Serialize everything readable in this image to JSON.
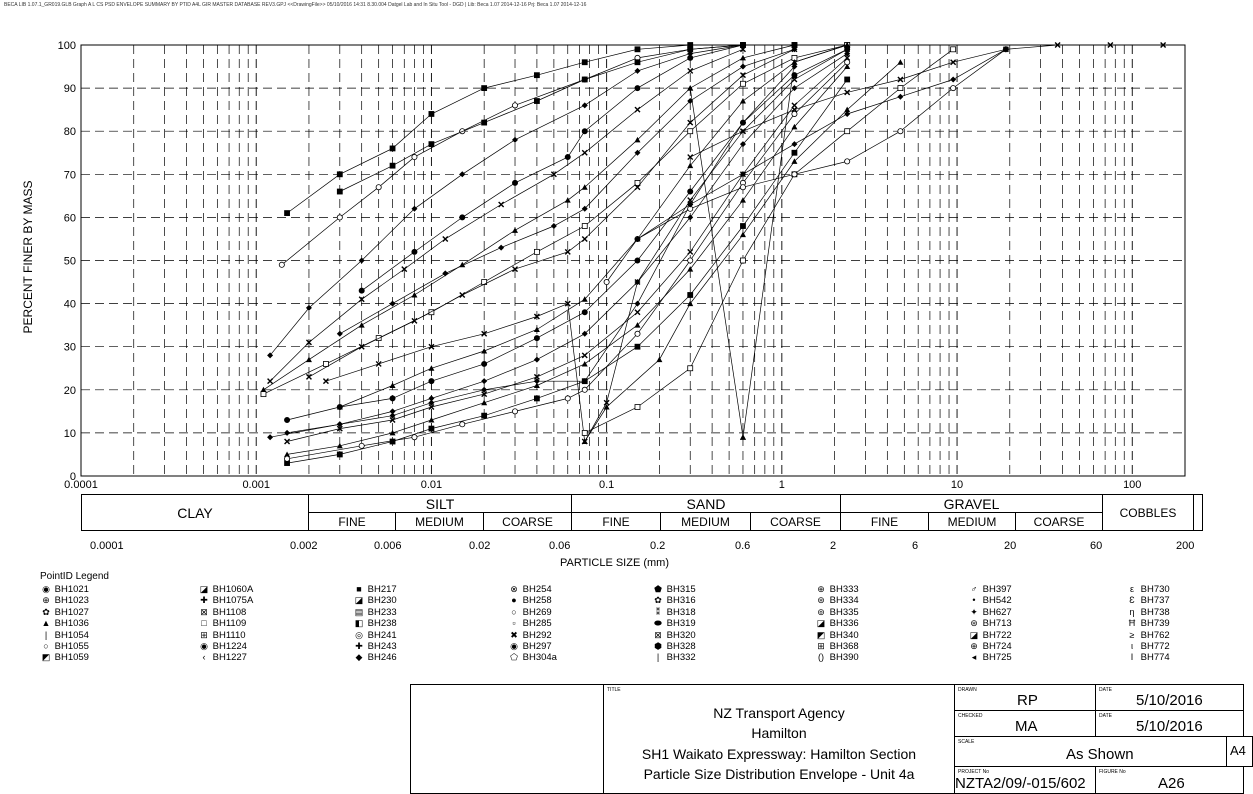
{
  "header_text": "BECA LIB 1.07.1_GR019.GLB Graph A L CS PSD ENVELOPE SUMMARY BY PTID A4L GIR MASTER DATABASE REV3.GPJ <<DrawingFile>> 05/10/2016 14:31 8.30.004 Datgel Lab and In Situ Tool - DGD | Lib: Beca 1.07 2014-12-16 Prj: Beca 1.07 2014-12-16",
  "chart_data": {
    "type": "line",
    "x_scale": "log",
    "xlim": [
      0.0001,
      200
    ],
    "ylim": [
      0,
      100
    ],
    "ylabel": "PERCENT FINER BY MASS",
    "xlabel": "PARTICLE SIZE (mm)",
    "y_ticks": [
      "0",
      "10",
      "20",
      "30",
      "40",
      "50",
      "60",
      "70",
      "80",
      "90",
      "100"
    ],
    "x_ticks": [
      "0.0001",
      "0.001",
      "0.01",
      "0.1",
      "1",
      "10",
      "100"
    ],
    "grid": true,
    "series": [
      {
        "x": [
          0.0015,
          0.003,
          0.006,
          0.01,
          0.02,
          0.04,
          0.075,
          0.15,
          0.3,
          0.6,
          1.18,
          2.36
        ],
        "y": [
          61,
          70,
          76,
          84,
          90,
          93,
          96,
          99,
          100,
          100,
          100,
          100
        ]
      },
      {
        "x": [
          0.0014,
          0.003,
          0.005,
          0.008,
          0.015,
          0.03,
          0.075,
          0.15,
          0.3,
          0.6,
          1.18
        ],
        "y": [
          49,
          60,
          67,
          74,
          80,
          86,
          92,
          97,
          99,
          100,
          100
        ]
      },
      {
        "x": [
          0.0012,
          0.002,
          0.004,
          0.008,
          0.015,
          0.03,
          0.075,
          0.15,
          0.3,
          0.6
        ],
        "y": [
          28,
          39,
          50,
          62,
          70,
          78,
          86,
          94,
          98,
          100
        ]
      },
      {
        "x": [
          0.0012,
          0.002,
          0.004,
          0.007,
          0.012,
          0.025,
          0.05,
          0.075,
          0.15,
          0.3,
          0.6
        ],
        "y": [
          22,
          31,
          41,
          48,
          55,
          63,
          70,
          75,
          85,
          94,
          99
        ]
      },
      {
        "x": [
          0.0011,
          0.002,
          0.004,
          0.008,
          0.015,
          0.03,
          0.06,
          0.075,
          0.15,
          0.3,
          0.6,
          1.18
        ],
        "y": [
          20,
          27,
          35,
          42,
          49,
          57,
          64,
          67,
          78,
          90,
          97,
          100
        ]
      },
      {
        "x": [
          0.0011,
          0.0025,
          0.005,
          0.01,
          0.02,
          0.04,
          0.075,
          0.15,
          0.3,
          0.6,
          1.18,
          2.36
        ],
        "y": [
          19,
          26,
          32,
          38,
          45,
          52,
          58,
          68,
          80,
          91,
          97,
          100
        ]
      },
      {
        "x": [
          0.0015,
          0.003,
          0.006,
          0.01,
          0.02,
          0.04,
          0.075,
          0.15,
          0.3,
          0.6,
          1.18,
          2.36
        ],
        "y": [
          13,
          16,
          18,
          22,
          26,
          32,
          38,
          50,
          66,
          82,
          93,
          99
        ]
      },
      {
        "x": [
          0.0015,
          0.003,
          0.006,
          0.01,
          0.02,
          0.04,
          0.075,
          0.15,
          0.3,
          0.6,
          1.18,
          2.36
        ],
        "y": [
          10,
          12,
          15,
          18,
          22,
          27,
          33,
          45,
          60,
          77,
          90,
          98
        ]
      },
      {
        "x": [
          0.0015,
          0.003,
          0.006,
          0.01,
          0.02,
          0.04,
          0.075,
          0.15,
          0.3,
          0.6,
          1.18,
          2.36
        ],
        "y": [
          8,
          11,
          13,
          16,
          19,
          23,
          28,
          38,
          52,
          70,
          86,
          97
        ]
      },
      {
        "x": [
          0.0015,
          0.003,
          0.006,
          0.01,
          0.02,
          0.04,
          0.075,
          0.15,
          0.3,
          0.6,
          1.18,
          2.36
        ],
        "y": [
          5,
          7,
          10,
          13,
          17,
          21,
          26,
          35,
          48,
          64,
          81,
          95
        ]
      },
      {
        "x": [
          0.0015,
          0.003,
          0.006,
          0.01,
          0.02,
          0.04,
          0.075,
          0.15,
          0.3,
          0.6,
          1.18,
          2.36
        ],
        "y": [
          3,
          5,
          8,
          11,
          14,
          18,
          22,
          30,
          42,
          58,
          75,
          92
        ]
      },
      {
        "x": [
          0.0015,
          0.004,
          0.008,
          0.015,
          0.03,
          0.06,
          0.075,
          0.15,
          0.3,
          0.6,
          1.18,
          2.36
        ],
        "y": [
          4,
          7,
          9,
          12,
          15,
          18,
          20,
          33,
          50,
          68,
          84,
          96
        ]
      },
      {
        "x": [
          0.0012,
          0.003,
          0.006,
          0.01,
          0.02,
          0.04,
          0.075,
          0.15,
          0.3,
          0.6,
          1.18
        ],
        "y": [
          9,
          12,
          14,
          17,
          20,
          22,
          22,
          40,
          63,
          82,
          95
        ]
      },
      {
        "x": [
          0.0025,
          0.005,
          0.01,
          0.02,
          0.04,
          0.06,
          0.075,
          0.1,
          0.15,
          0.3,
          0.6,
          1.18,
          2.36
        ],
        "y": [
          22,
          26,
          30,
          33,
          37,
          40,
          8,
          17,
          45,
          64,
          80,
          92,
          99
        ]
      },
      {
        "x": [
          0.075,
          0.1,
          0.2,
          0.3,
          0.6,
          1.18,
          2.36,
          4.75
        ],
        "y": [
          8,
          16,
          27,
          40,
          56,
          73,
          85,
          96
        ]
      },
      {
        "x": [
          0.075,
          0.15,
          0.3,
          0.6,
          1.18,
          2.36,
          4.75,
          9.5
        ],
        "y": [
          10,
          16,
          25,
          50,
          70,
          80,
          90,
          99
        ]
      },
      {
        "x": [
          0.1,
          0.15,
          0.3,
          0.6,
          1.18,
          2.36,
          4.75,
          9.5,
          19
        ],
        "y": [
          45,
          55,
          62,
          67,
          70,
          73,
          80,
          90,
          99
        ]
      },
      {
        "x": [
          0.15,
          0.3,
          0.6,
          1.18,
          2.36,
          4.75,
          9.5,
          19
        ],
        "y": [
          55,
          63,
          70,
          77,
          84,
          88,
          92,
          99
        ]
      },
      {
        "x": [
          0.3,
          0.6,
          1.18,
          2.36,
          4.75,
          9.5,
          19,
          37.5,
          75,
          150
        ],
        "y": [
          74,
          80,
          85,
          89,
          92,
          96,
          99,
          100,
          100,
          100
        ]
      },
      {
        "x": [
          0.3,
          0.6,
          0.6,
          1.18,
          2.36
        ],
        "y": [
          90,
          9,
          9,
          96,
          100
        ]
      },
      {
        "x": [
          0.003,
          0.006,
          0.01,
          0.02,
          0.04,
          0.075,
          0.15,
          0.3,
          0.6,
          1.18
        ],
        "y": [
          66,
          72,
          77,
          82,
          87,
          92,
          96,
          99,
          100,
          100
        ]
      },
      {
        "x": [
          0.004,
          0.008,
          0.015,
          0.03,
          0.06,
          0.075,
          0.15,
          0.3,
          0.6
        ],
        "y": [
          43,
          52,
          60,
          68,
          74,
          80,
          90,
          97,
          100
        ]
      },
      {
        "x": [
          0.003,
          0.006,
          0.012,
          0.025,
          0.05,
          0.075,
          0.15,
          0.3,
          0.6,
          1.18
        ],
        "y": [
          33,
          40,
          47,
          53,
          58,
          62,
          75,
          87,
          95,
          99
        ]
      },
      {
        "x": [
          0.002,
          0.004,
          0.008,
          0.015,
          0.03,
          0.06,
          0.075,
          0.15,
          0.3,
          0.6,
          1.18
        ],
        "y": [
          23,
          30,
          36,
          42,
          48,
          52,
          55,
          67,
          82,
          93,
          99
        ]
      },
      {
        "x": [
          0.003,
          0.006,
          0.01,
          0.02,
          0.04,
          0.075,
          0.15,
          0.3,
          0.6,
          1.18,
          2.36
        ],
        "y": [
          16,
          21,
          25,
          29,
          34,
          41,
          55,
          72,
          87,
          96,
          100
        ]
      }
    ]
  },
  "classification": {
    "clay": "CLAY",
    "silt": "SILT",
    "sand": "SAND",
    "gravel": "GRAVEL",
    "cobbles": "COBBLES",
    "fine": "FINE",
    "medium": "MEDIUM",
    "coarse": "COARSE",
    "bottom_ticks": [
      "0.0001",
      "0.002",
      "0.006",
      "0.02",
      "0.06",
      "0.2",
      "0.6",
      "2",
      "6",
      "20",
      "60",
      "200"
    ]
  },
  "legend": {
    "title": "PointID Legend",
    "columns": [
      [
        [
          "◉",
          "BH1021"
        ],
        [
          "⊕",
          "BH1023"
        ],
        [
          "✿",
          "BH1027"
        ],
        [
          "▲",
          "BH1036"
        ],
        [
          "|",
          "BH1054"
        ],
        [
          "○",
          "BH1055"
        ],
        [
          "◩",
          "BH1059"
        ]
      ],
      [
        [
          "◪",
          "BH1060A"
        ],
        [
          "✚",
          "BH1075A"
        ],
        [
          "⊠",
          "BH1108"
        ],
        [
          "□",
          "BH1109"
        ],
        [
          "⊞",
          "BH1110"
        ],
        [
          "◉",
          "BH1224"
        ],
        [
          "‹",
          "BH1227"
        ]
      ],
      [
        [
          "■",
          "BH217"
        ],
        [
          "◪",
          "BH230"
        ],
        [
          "▤",
          "BH233"
        ],
        [
          "◧",
          "BH238"
        ],
        [
          "◎",
          "BH241"
        ],
        [
          "✚",
          "BH243"
        ],
        [
          "◆",
          "BH246"
        ]
      ],
      [
        [
          "⊗",
          "BH254"
        ],
        [
          "●",
          "BH258"
        ],
        [
          "○",
          "BH269"
        ],
        [
          "▫",
          "BH285"
        ],
        [
          "✖",
          "BH292"
        ],
        [
          "◉",
          "BH297"
        ],
        [
          "⬠",
          "BH304a"
        ]
      ],
      [
        [
          "⬟",
          "BH315"
        ],
        [
          "✿",
          "BH316"
        ],
        [
          "⁑",
          "BH318"
        ],
        [
          "⬬",
          "BH319"
        ],
        [
          "⊠",
          "BH320"
        ],
        [
          "⬢",
          "BH328"
        ],
        [
          "|",
          "BH332"
        ]
      ],
      [
        [
          "⊕",
          "BH333"
        ],
        [
          "⊛",
          "BH334"
        ],
        [
          "⊚",
          "BH335"
        ],
        [
          "◪",
          "BH336"
        ],
        [
          "◩",
          "BH340"
        ],
        [
          "⊞",
          "BH368"
        ],
        [
          "()",
          "BH390"
        ]
      ],
      [
        [
          "♂",
          "BH397"
        ],
        [
          "•",
          "BH542"
        ],
        [
          "✦",
          "BH627"
        ],
        [
          "⊛",
          "BH713"
        ],
        [
          "◪",
          "BH722"
        ],
        [
          "⊕",
          "BH724"
        ],
        [
          "◂",
          "BH725"
        ]
      ],
      [
        [
          "ε",
          "BH730"
        ],
        [
          "Ɛ",
          "BH737"
        ],
        [
          "η",
          "BH738"
        ],
        [
          "Ħ",
          "BH739"
        ],
        [
          "≥",
          "BH762"
        ],
        [
          "ι",
          "BH772"
        ],
        [
          "I",
          "BH774"
        ]
      ]
    ]
  },
  "title_block": {
    "title_label": "TITLE",
    "title_lines": [
      "NZ Transport Agency",
      "Hamilton",
      "SH1 Waikato Expressway: Hamilton Section",
      "Particle Size Distribution Envelope - Unit 4a"
    ],
    "drawn_label": "DRAWN",
    "drawn": "RP",
    "checked_label": "CHECKED",
    "checked": "MA",
    "date_label": "DATE",
    "date1": "5/10/2016",
    "date2": "5/10/2016",
    "scale_label": "SCALE",
    "scale": "As Shown",
    "paper": "A4",
    "project_label": "PROJECT No",
    "project": "NZTA2/09/-015/602",
    "figure_label": "FIGURE No",
    "figure": "A26"
  }
}
